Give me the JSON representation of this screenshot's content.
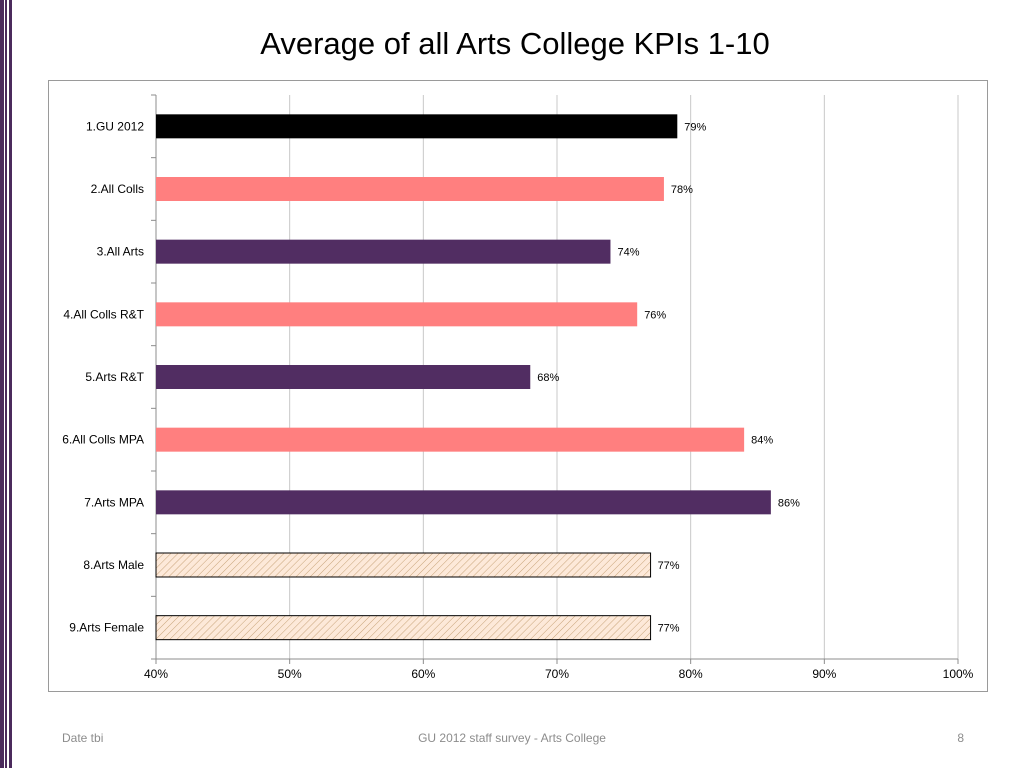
{
  "slide": {
    "title": "Average of all Arts College KPIs 1-10",
    "footer_left": "Date tbi",
    "footer_center": "GU 2012 staff survey -  Arts College",
    "page_number": "8"
  },
  "colors": {
    "gu": "#000000",
    "all_colls": "#ff7f7f",
    "arts": "#512d62",
    "hatch_fill": "#fde9d9",
    "hatch_line": "#c8a47a",
    "accent": "#4b2a5c"
  },
  "chart_data": {
    "type": "bar",
    "orientation": "horizontal",
    "categories": [
      "1.GU 2012",
      "2.All Colls",
      "3.All Arts",
      "4.All Colls R&T",
      "5.Arts R&T",
      "6.All Colls MPA",
      "7.Arts MPA",
      "8.Arts Male",
      "9.Arts Female"
    ],
    "values": [
      79,
      78,
      74,
      76,
      68,
      84,
      86,
      77,
      77
    ],
    "value_labels": [
      "79%",
      "78%",
      "74%",
      "76%",
      "68%",
      "84%",
      "86%",
      "77%",
      "77%"
    ],
    "bar_styles": [
      "gu",
      "all_colls",
      "arts",
      "all_colls",
      "arts",
      "all_colls",
      "arts",
      "hatch",
      "hatch"
    ],
    "xlim": [
      40,
      100
    ],
    "xticks": [
      40,
      50,
      60,
      70,
      80,
      90,
      100
    ],
    "xtick_labels": [
      "40%",
      "50%",
      "60%",
      "70%",
      "80%",
      "90%",
      "100%"
    ],
    "grid": true,
    "legend": "none",
    "title": "",
    "xlabel": "",
    "ylabel": ""
  }
}
